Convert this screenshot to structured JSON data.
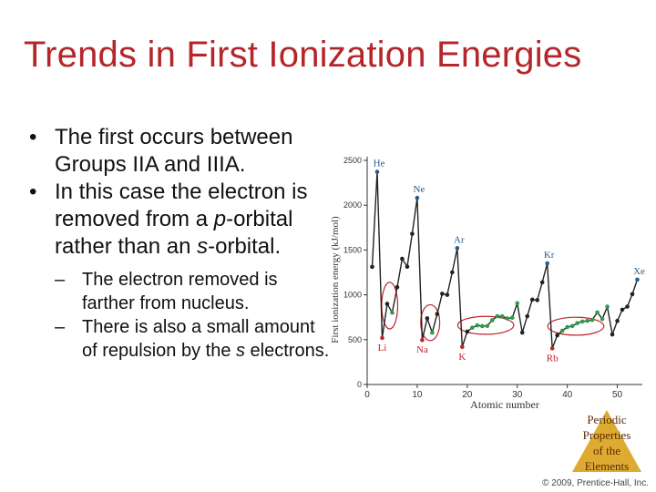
{
  "slide": {
    "title": "Trends in First Ionization Energies",
    "bullets": [
      {
        "pre": "The first occurs between Groups IIA and IIIA.",
        "emph": "",
        "post": ""
      },
      {
        "pre": "In this case the electron is removed from a ",
        "emph": "p",
        "post": "-orbital rather than an ",
        "emph2": "s",
        "post2": "-orbital."
      }
    ],
    "subbullets": [
      {
        "text": "The electron removed is farther from nucleus."
      },
      {
        "pre": "There is also a small amount of repulsion by the ",
        "emph": "s",
        "post": " electrons."
      }
    ],
    "badge": {
      "line1": "Periodic",
      "line2": "Properties",
      "line3": "of the",
      "line4": "Elements"
    },
    "copyright": "© 2009, Prentice-Hall, Inc."
  },
  "colors": {
    "title": "#b5262b",
    "accent_circle": "#c0242b",
    "dot_dark": "#222222",
    "dot_blue": "#2a5d8c",
    "dot_green": "#2f9a4a",
    "dot_red": "#c0242b",
    "badge": "#d9a21b"
  },
  "chart_data": {
    "type": "line",
    "xlabel": "Atomic number",
    "ylabel": "First ionization energy (kJ/mol)",
    "xlim": [
      0,
      55
    ],
    "ylim": [
      0,
      2500
    ],
    "xticks": [
      0,
      10,
      20,
      30,
      40,
      50
    ],
    "yticks": [
      0,
      500,
      1000,
      1500,
      2000,
      2500
    ],
    "x": [
      1,
      2,
      3,
      4,
      5,
      6,
      7,
      8,
      9,
      10,
      11,
      12,
      13,
      14,
      15,
      16,
      17,
      18,
      19,
      20,
      21,
      22,
      23,
      24,
      25,
      26,
      27,
      28,
      29,
      30,
      31,
      32,
      33,
      34,
      35,
      36,
      37,
      38,
      39,
      40,
      41,
      42,
      43,
      44,
      45,
      46,
      47,
      48,
      49,
      50,
      51,
      52,
      53,
      54
    ],
    "values": [
      1312,
      2372,
      520,
      900,
      801,
      1086,
      1402,
      1314,
      1681,
      2081,
      496,
      738,
      578,
      787,
      1012,
      1000,
      1251,
      1521,
      419,
      590,
      633,
      659,
      651,
      653,
      717,
      762,
      760,
      737,
      745,
      906,
      579,
      762,
      947,
      941,
      1140,
      1351,
      403,
      549,
      600,
      640,
      652,
      684,
      702,
      710,
      720,
      804,
      731,
      868,
      558,
      709,
      834,
      869,
      1008,
      1170
    ],
    "point_groups": {
      "blue": [
        2,
        10,
        18,
        36,
        54
      ],
      "red": [
        3,
        11,
        19,
        37
      ]
    },
    "element_labels": [
      {
        "text": "He",
        "x": 2,
        "y": 2372
      },
      {
        "text": "Ne",
        "x": 10,
        "y": 2081
      },
      {
        "text": "Ar",
        "x": 18,
        "y": 1521
      },
      {
        "text": "Kr",
        "x": 36,
        "y": 1351
      },
      {
        "text": "Xe",
        "x": 54,
        "y": 1170
      },
      {
        "text": "Li",
        "x": 3,
        "y": 520
      },
      {
        "text": "Na",
        "x": 11,
        "y": 496
      },
      {
        "text": "K",
        "x": 19,
        "y": 419
      },
      {
        "text": "Rb",
        "x": 37,
        "y": 403
      }
    ]
  }
}
